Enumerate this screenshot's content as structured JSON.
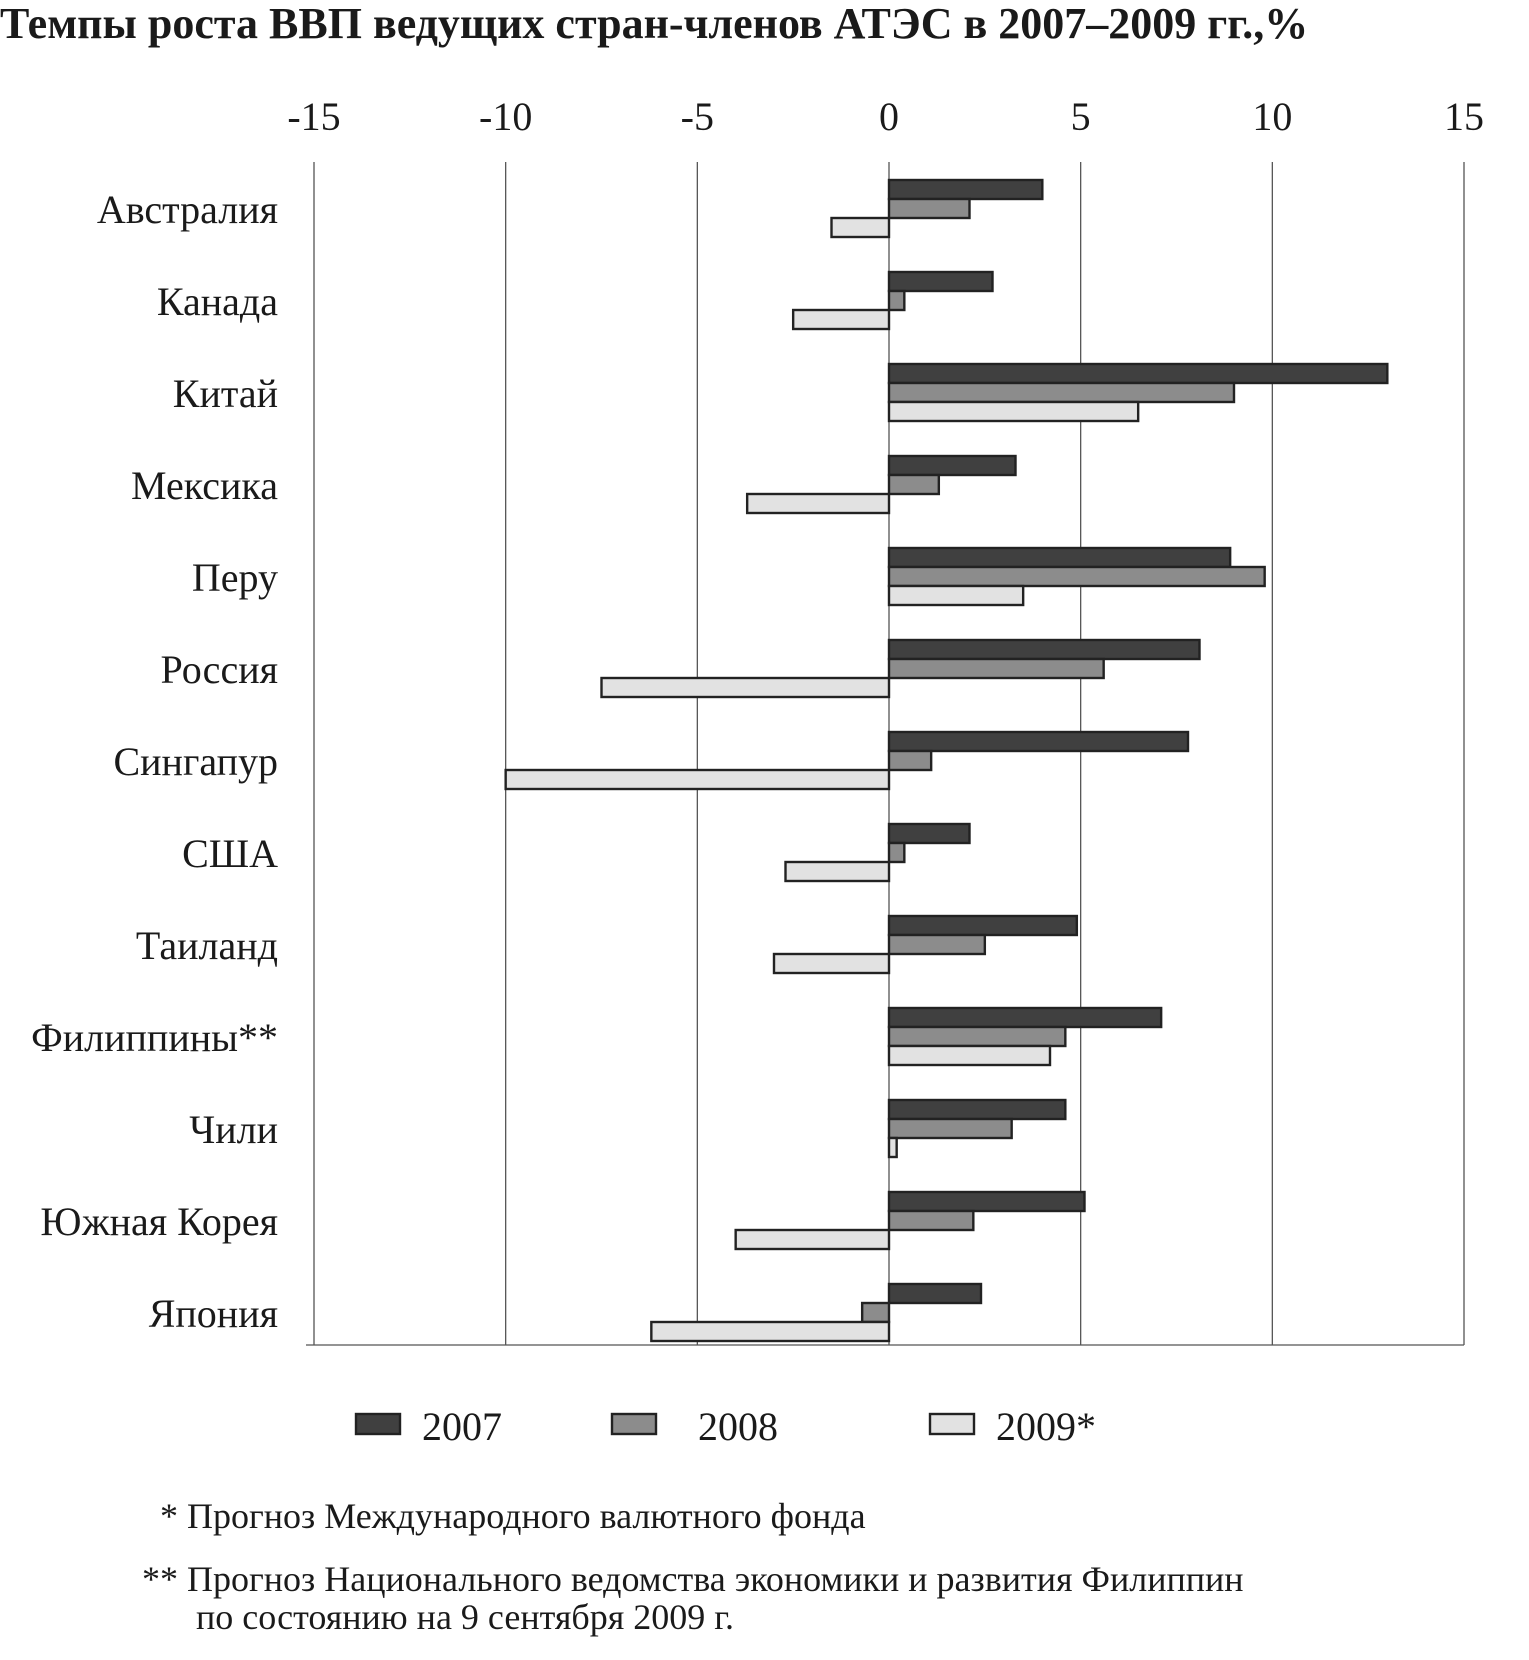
{
  "chart_data": {
    "type": "bar",
    "orientation": "horizontal",
    "title": "Темпы роста ВВП ведущих стран-членов АТЭС в 2007–2009 гг.,%",
    "xlim": [
      -15,
      15
    ],
    "xticks": [
      "-15",
      "-10",
      "-5",
      "0",
      "5",
      "10",
      "15"
    ],
    "xaxis_position": "top",
    "grid": true,
    "legend_position": "bottom",
    "categories": [
      "Австралия",
      "Канада",
      "Китай",
      "Мексика",
      "Перу",
      "Россия",
      "Сингапур",
      "США",
      "Таиланд",
      "Филиппины**",
      "Чили",
      "Южная Корея",
      "Япония"
    ],
    "series": [
      {
        "name": "2007",
        "color": "#404040",
        "values": [
          4.0,
          2.7,
          13.0,
          3.3,
          8.9,
          8.1,
          7.8,
          2.1,
          4.9,
          7.1,
          4.6,
          5.1,
          2.4
        ]
      },
      {
        "name": "2008",
        "color": "#8c8c8c",
        "values": [
          2.1,
          0.4,
          9.0,
          1.3,
          9.8,
          5.6,
          1.1,
          0.4,
          2.5,
          4.6,
          3.2,
          2.2,
          -0.7
        ]
      },
      {
        "name": "2009*",
        "color": "#e2e2e2",
        "values": [
          -1.5,
          -2.5,
          6.5,
          -3.7,
          3.5,
          -7.5,
          -10.0,
          -2.7,
          -3.0,
          4.2,
          0.2,
          -4.0,
          -6.2
        ]
      }
    ]
  },
  "footnotes": [
    "* Прогноз Международного валютного фонда",
    "** Прогноз Национального ведомства экономики и развития Филиппин",
    "по состоянию на 9 сентября 2009 г."
  ]
}
